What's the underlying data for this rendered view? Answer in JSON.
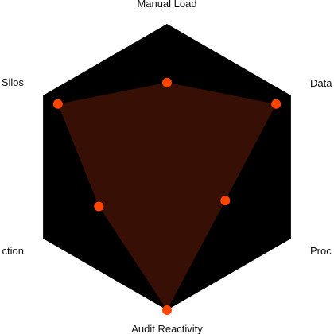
{
  "chart_data": {
    "type": "radar",
    "categories": [
      "Manual Load",
      "Data Silos",
      "Process Debt",
      "Audit Reactivity",
      "Detection Gaps",
      "Tool Silos"
    ],
    "labels_visible": [
      "Manual Load",
      "Data",
      "Proc",
      "Audit Reactivity",
      "ction",
      "Silos"
    ],
    "series": [
      {
        "values": [
          0.59,
          0.88,
          0.47,
          1.0,
          0.55,
          0.88
        ]
      }
    ],
    "range": [
      0,
      1
    ],
    "grid": false,
    "colors": {
      "background": "#000000",
      "fill": "#3a1005",
      "marker": "#ff4500"
    }
  }
}
